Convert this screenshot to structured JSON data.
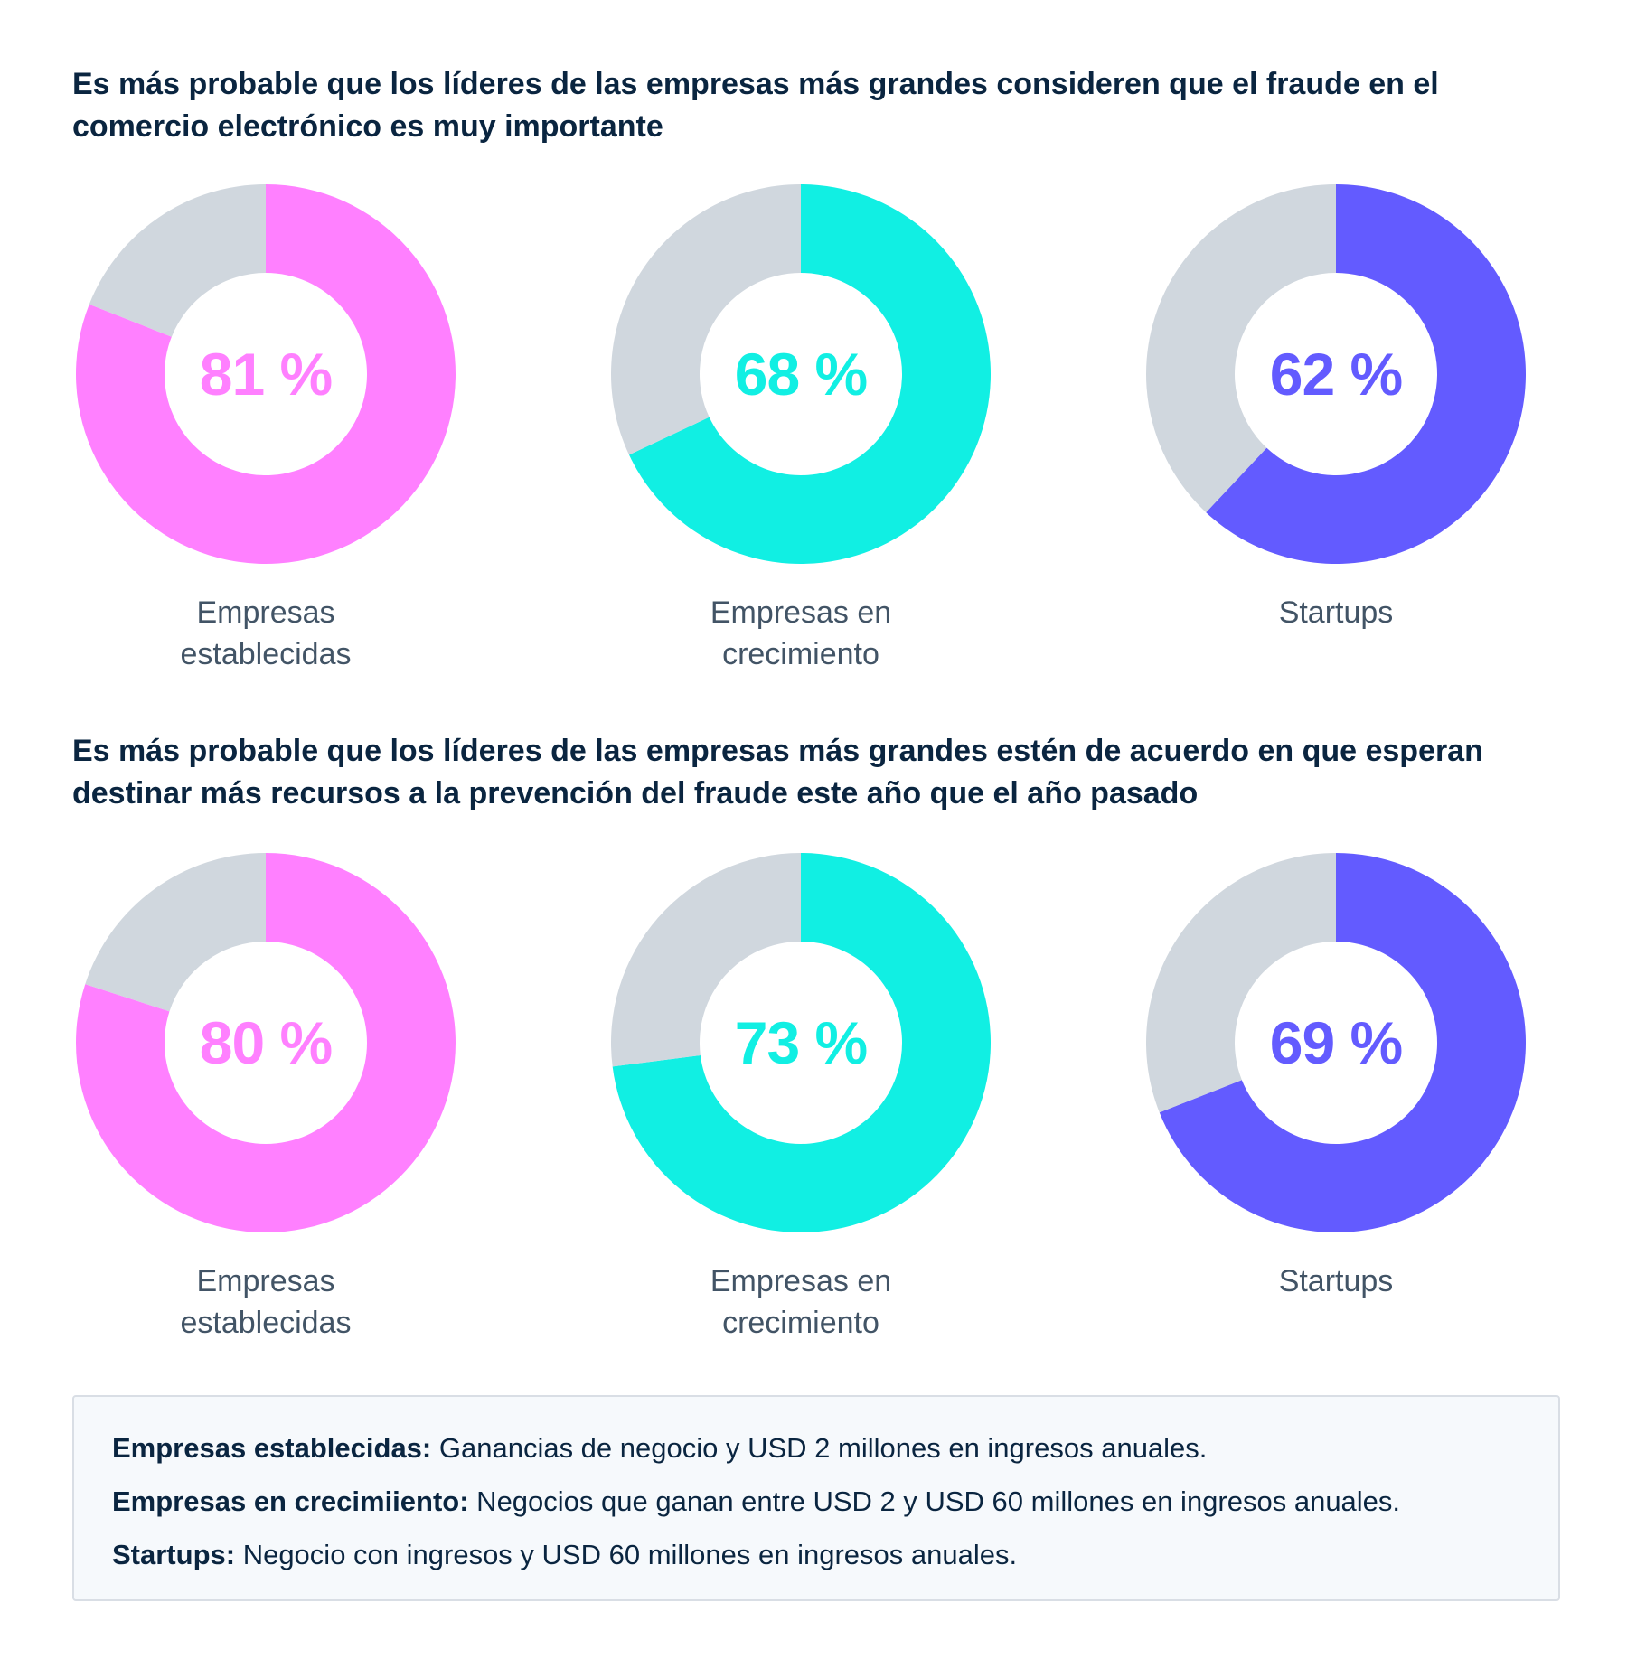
{
  "sections": [
    {
      "title": "Es más probable que los líderes de las empresas más grandes consideren que el fraude en el comercio electrónico es muy importante"
    },
    {
      "title": "Es más probable que los líderes de las empresas más grandes estén de acuerdo en que esperan destinar más recursos a la prevención del fraude este año que el año pasado"
    }
  ],
  "colors": {
    "remainder": "#d0d7de",
    "establecidas": "#ff80ff",
    "crecimiento": "#11efe3",
    "startups": "#635bff"
  },
  "chart_data": [
    {
      "type": "pie",
      "title": "Es más probable que los líderes de las empresas más grandes consideren que el fraude en el comercio electrónico es muy importante",
      "categories": [
        "Empresas establecidas",
        "Empresas en crecimiento",
        "Startups"
      ],
      "values": [
        81,
        68,
        62
      ],
      "value_labels": [
        "81 %",
        "68 %",
        "62 %"
      ],
      "category_lines": [
        [
          "Empresas",
          "establecidas"
        ],
        [
          "Empresas en",
          "crecimiento"
        ],
        [
          "Startups"
        ]
      ]
    },
    {
      "type": "pie",
      "title": "Es más probable que los líderes de las empresas más grandes estén de acuerdo en que esperan destinar más recursos a la prevención del fraude este año que el año pasado",
      "categories": [
        "Empresas establecidas",
        "Empresas en crecimiento",
        "Startups"
      ],
      "values": [
        80,
        73,
        69
      ],
      "value_labels": [
        "80 %",
        "73 %",
        "69 %"
      ],
      "category_lines": [
        [
          "Empresas",
          "establecidas"
        ],
        [
          "Empresas en",
          "crecimiento"
        ],
        [
          "Startups"
        ]
      ]
    }
  ],
  "footnote": {
    "items": [
      {
        "term": "Empresas establecidas:",
        "text": " Ganancias de negocio y USD 2 millones en ingresos anuales."
      },
      {
        "term": "Empresas en crecimiiento:",
        "text": " Negocios que ganan entre USD 2 y USD 60 millones en ingresos anuales."
      },
      {
        "term": "Startups:",
        "text": " Negocio con ingresos y USD 60 millones en ingresos anuales."
      }
    ]
  }
}
